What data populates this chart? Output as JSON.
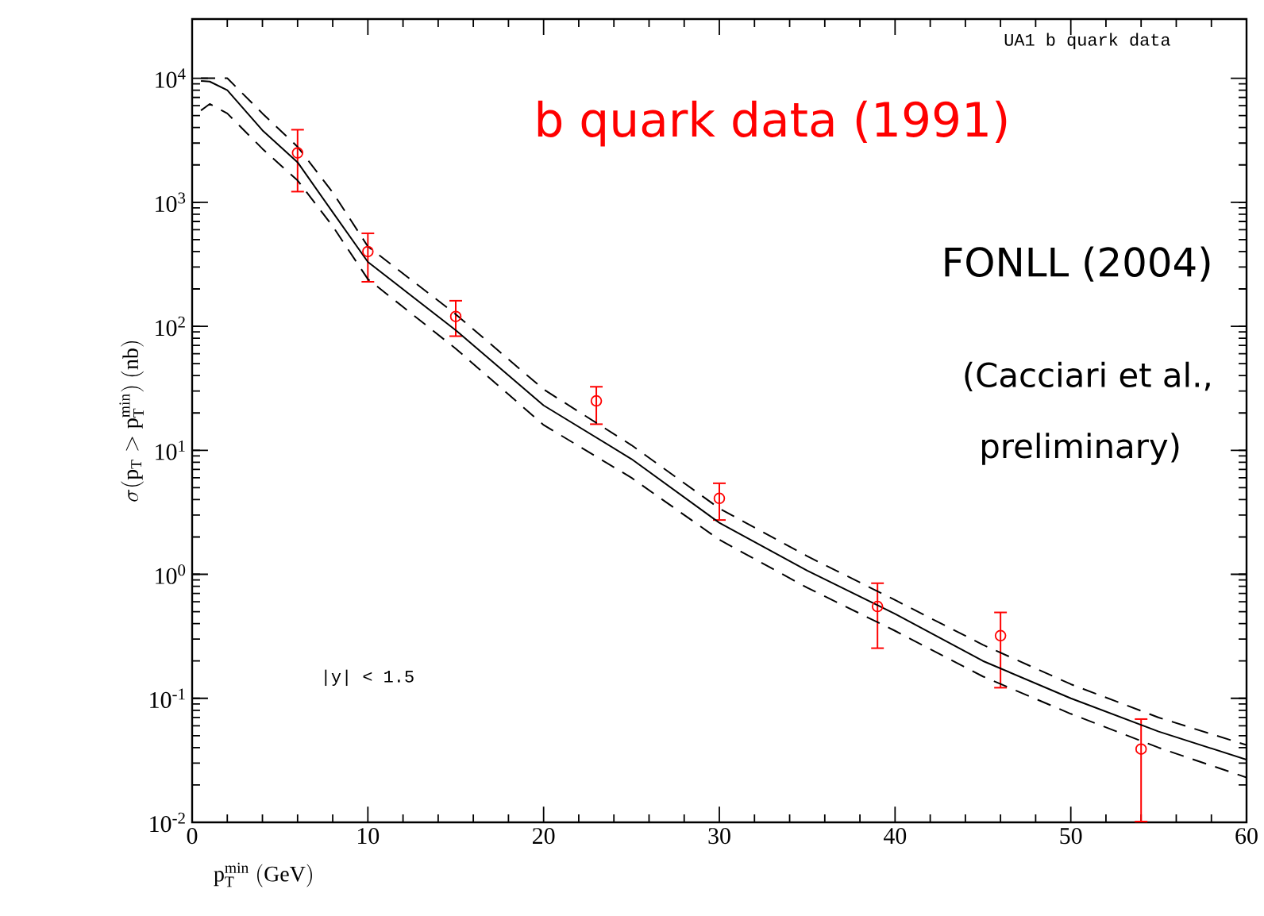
{
  "chart_data": {
    "type": "line",
    "xlabel": "\\mathrm{p}_{\\mathrm{T}}^{\\mathrm{min}}\\ \\mathrm{(GeV)}",
    "ylabel": "\\sigma(\\mathrm{p}_{\\mathrm{T}} > \\mathrm{p}_{\\mathrm{T}}^{\\mathrm{min}})\\ \\mathrm{(nb)}",
    "log": "y",
    "xlim": [
      0,
      60
    ],
    "ylim": [
      0.01,
      30000
    ],
    "xticks": [
      0,
      10,
      20,
      30,
      40,
      50,
      60
    ],
    "yticks": [
      {
        "value": 0.01,
        "label": "10$^{-2}$"
      },
      {
        "value": 0.1,
        "label": "10$^{-1}$"
      },
      {
        "value": 1,
        "label": "10$^{0}$"
      },
      {
        "value": 10,
        "label": "10$^{1}$"
      },
      {
        "value": 100,
        "label": "10$^{2}$"
      },
      {
        "value": 1000,
        "label": "10$^{3}$"
      },
      {
        "value": 10000,
        "label": "10$^{4}$"
      }
    ],
    "annotations": [
      "UA1 b quark data",
      "b quark data (1991)",
      "FONLL (2004)",
      "(Cacciari et al.,",
      "preliminary)",
      "|y| < 1.5"
    ],
    "series": [
      {
        "type": "scatter",
        "color": "#ff0000",
        "marker": "circle",
        "x": [
          6,
          10,
          15,
          23,
          30,
          39,
          46,
          54
        ],
        "values": [
          2500,
          400,
          120,
          25,
          4.1,
          0.55,
          0.32,
          0.039
        ],
        "errors": [
          [
            1200,
            3900
          ],
          [
            225,
            570
          ],
          [
            82,
            163
          ],
          [
            16,
            33
          ],
          [
            2.7,
            5.5
          ],
          [
            0.25,
            0.86
          ],
          [
            0.12,
            0.5
          ],
          [
            0.01,
            0.069
          ]
        ]
      },
      {
        "color": "#000000",
        "line_style": "solid",
        "marker": "none",
        "x": [
          0.5,
          1,
          2,
          4,
          6,
          8,
          10,
          15,
          20,
          25,
          30,
          35,
          40,
          45,
          50,
          55,
          60
        ],
        "values": [
          9500,
          9400,
          8000,
          3800,
          2100,
          830,
          330,
          93,
          23,
          8.5,
          2.6,
          1.07,
          0.48,
          0.2,
          0.1,
          0.054,
          0.032
        ]
      },
      {
        "color": "#000000",
        "line_style": "dashed",
        "marker": "none",
        "x": [
          0.5,
          1,
          2,
          4,
          6,
          8,
          10,
          15,
          20,
          25,
          30,
          35,
          40,
          45,
          50,
          55,
          60
        ],
        "values": [
          10000,
          10000,
          10000,
          5200,
          2800,
          1200,
          440,
          125,
          31,
          11,
          3.4,
          1.4,
          0.62,
          0.27,
          0.13,
          0.07,
          0.042
        ]
      },
      {
        "color": "#000000",
        "line_style": "dashed",
        "marker": "none",
        "x": [
          0.5,
          1,
          2,
          4,
          6,
          8,
          10,
          15,
          20,
          25,
          30,
          35,
          40,
          45,
          50,
          55,
          60
        ],
        "values": [
          5500,
          6200,
          5200,
          2700,
          1500,
          640,
          240,
          66,
          16,
          6,
          1.9,
          0.78,
          0.35,
          0.15,
          0.075,
          0.04,
          0.023
        ]
      }
    ]
  }
}
